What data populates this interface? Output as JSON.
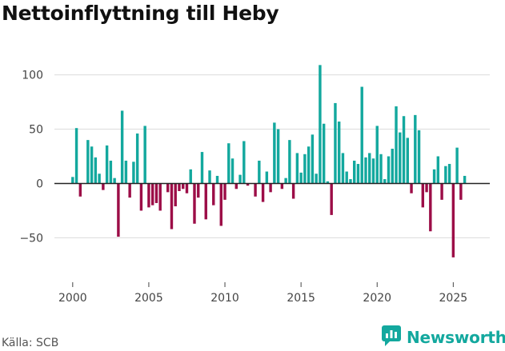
{
  "title": "Nettoinflyttning till Heby",
  "source": "Källa: SCB",
  "brand": "Newsworthy",
  "colors": {
    "positive": "#13a89e",
    "negative": "#9c0d47",
    "brand": "#13a89e"
  },
  "chart_data": {
    "type": "bar",
    "title": "Nettoinflyttning till Heby",
    "xlabel": "",
    "ylabel": "",
    "frequency": "quarterly",
    "x_start": 2000,
    "xlim": [
      1998.8,
      2027.4
    ],
    "ylim": [
      -85,
      110
    ],
    "yticks": [
      -50,
      0,
      50,
      100
    ],
    "ytick_labels": [
      "−50",
      "0",
      "50",
      "100"
    ],
    "xticks": [
      2000,
      2005,
      2010,
      2015,
      2020,
      2025
    ],
    "xtick_labels": [
      "2000",
      "2005",
      "2010",
      "2015",
      "2020",
      "2025"
    ],
    "grid": "horizontal",
    "values": [
      6,
      51,
      -12,
      0,
      40,
      34,
      24,
      9,
      -6,
      35,
      21,
      5,
      -49,
      67,
      21,
      -13,
      20,
      46,
      -25,
      53,
      -22,
      -20,
      -18,
      -25,
      0,
      -8,
      -42,
      -21,
      -7,
      -5,
      -9,
      13,
      -37,
      -13,
      29,
      -33,
      12,
      -20,
      7,
      -39,
      -15,
      37,
      23,
      -5,
      8,
      39,
      -2,
      0,
      -12,
      21,
      -17,
      11,
      -8,
      56,
      50,
      -5,
      5,
      40,
      -14,
      28,
      10,
      27,
      34,
      45,
      9,
      109,
      55,
      2,
      -29,
      74,
      57,
      28,
      11,
      4,
      21,
      18,
      89,
      24,
      28,
      23,
      53,
      27,
      4,
      25,
      32,
      71,
      47,
      62,
      42,
      -9,
      63,
      49,
      -22,
      -8,
      -44,
      13,
      25,
      -15,
      16,
      18,
      -68,
      33,
      -15,
      7
    ]
  }
}
